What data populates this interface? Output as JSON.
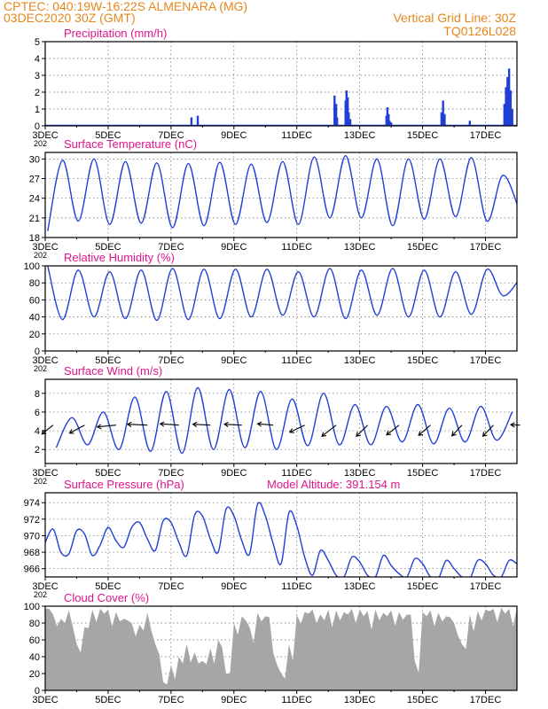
{
  "header": {
    "line1": "CPTEC:   040:19W-16:22S   ALMENARA (MG)",
    "line2": "03DEC2020 30Z (GMT)",
    "grid_note": "Vertical Grid Line: 30Z",
    "code": "TQ0126L028"
  },
  "colors": {
    "header": "#e8861a",
    "panel_title": "#e0158c",
    "series": "#1f3fd6",
    "cloud": "#a6a6a6",
    "axis": "#000000",
    "grid": "#666666"
  },
  "x_axis": {
    "start": "03DEC",
    "end": "18DEC",
    "tick_labels": [
      "3DEC",
      "5DEC",
      "7DEC",
      "9DEC",
      "11DEC",
      "13DEC",
      "15DEC",
      "17DEC"
    ],
    "tick_days": [
      0,
      2,
      4,
      6,
      8,
      10,
      12,
      14
    ],
    "year_fragment": "202"
  },
  "chart_data": [
    {
      "type": "bar",
      "title": "Precipitation (mm/h)",
      "ylim": [
        0,
        5
      ],
      "yticks": [
        "0",
        "1",
        "2",
        "3",
        "4",
        "5"
      ],
      "grid": true,
      "x_day": [
        4.65,
        4.85,
        9.2,
        9.25,
        9.28,
        9.55,
        9.58,
        9.62,
        9.65,
        9.7,
        10.85,
        10.88,
        10.92,
        10.95,
        11.0,
        12.6,
        12.65,
        12.7,
        13.5,
        14.6,
        14.65,
        14.7,
        14.75,
        14.8,
        14.85
      ],
      "values": [
        0.5,
        0.6,
        1.8,
        1.3,
        0.5,
        1.5,
        2.1,
        1.7,
        0.8,
        0.4,
        0.6,
        1.1,
        0.7,
        0.3,
        0.2,
        0.8,
        1.5,
        0.7,
        0.3,
        1.3,
        2.3,
        2.9,
        3.4,
        2.1,
        1.0
      ]
    },
    {
      "type": "line",
      "title": "Surface Temperature (nC)",
      "ylim": [
        18,
        31
      ],
      "yticks": [
        "18",
        "21",
        "24",
        "27",
        "30"
      ],
      "grid": true,
      "series": [
        {
          "min_day": [
            0.08,
            1.05,
            2.05,
            3.05,
            4.05,
            5.05,
            6.05,
            7.05,
            8.05,
            9.05,
            10.05,
            11.05,
            12.05,
            13.05,
            14.05,
            15.05
          ],
          "min_values": [
            19.0,
            20.5,
            20.0,
            20.2,
            19.5,
            19.8,
            20.0,
            20.3,
            20.0,
            21.0,
            21.0,
            19.8,
            20.8,
            21.2,
            20.5,
            22.5
          ],
          "max_day": [
            0.55,
            1.55,
            2.55,
            3.55,
            4.55,
            5.55,
            6.55,
            7.55,
            8.55,
            9.55,
            10.55,
            11.55,
            12.55,
            13.55,
            14.55
          ],
          "max_values": [
            29.8,
            30.0,
            29.6,
            29.4,
            29.3,
            29.5,
            29.2,
            29.6,
            30.3,
            30.5,
            30.0,
            30.0,
            30.0,
            30.2,
            27.5
          ]
        }
      ]
    },
    {
      "type": "line",
      "title": "Relative Humidity (%)",
      "ylim": [
        0,
        100
      ],
      "yticks": [
        "0",
        "20",
        "40",
        "60",
        "80",
        "100"
      ],
      "grid": true,
      "series": [
        {
          "min_day": [
            0.55,
            1.55,
            2.55,
            3.55,
            4.55,
            5.55,
            6.55,
            7.55,
            8.55,
            9.55,
            10.55,
            11.55,
            12.55,
            13.55,
            14.55
          ],
          "min_values": [
            37,
            40,
            38,
            36,
            37,
            38,
            40,
            42,
            40,
            38,
            42,
            40,
            40,
            43,
            65
          ],
          "max_day": [
            0.08,
            1.05,
            2.05,
            3.05,
            4.05,
            5.05,
            6.05,
            7.05,
            8.05,
            9.05,
            10.05,
            11.05,
            12.05,
            13.05,
            14.05,
            15.05
          ],
          "max_values": [
            100,
            95,
            93,
            95,
            97,
            96,
            96,
            96,
            93,
            97,
            95,
            97,
            95,
            93,
            96,
            83
          ]
        }
      ]
    },
    {
      "type": "line",
      "title": "Surface Wind (m/s)",
      "ylim": [
        0.5,
        9.5
      ],
      "yticks": [
        "2",
        "4",
        "6",
        "8"
      ],
      "grid": true,
      "series": [
        {
          "min_day": [
            0.35,
            1.35,
            2.35,
            3.35,
            4.35,
            5.35,
            6.35,
            7.35,
            8.35,
            9.35,
            10.35,
            11.35,
            12.35,
            13.35,
            14.35
          ],
          "min_values": [
            2.2,
            2.5,
            2.0,
            1.8,
            1.6,
            2.0,
            2.2,
            2.0,
            2.4,
            2.5,
            2.5,
            2.8,
            2.6,
            2.8,
            3.0
          ],
          "max_day": [
            0.85,
            1.85,
            2.85,
            3.85,
            4.85,
            5.85,
            6.85,
            7.85,
            8.85,
            9.85,
            10.85,
            11.85,
            12.85,
            13.85,
            14.85
          ],
          "max_values": [
            5.4,
            6.0,
            7.6,
            8.2,
            8.6,
            8.4,
            8.2,
            7.4,
            8.0,
            6.8,
            6.6,
            6.8,
            6.4,
            6.6,
            6.0
          ]
        }
      ],
      "vectors": {
        "x_day": [
          0.25,
          1.25,
          2.25,
          3.25,
          4.25,
          5.25,
          6.25,
          7.25,
          8.25,
          9.25,
          10.25,
          11.25,
          12.25,
          13.25,
          14.25,
          15.1
        ],
        "u": [
          -1.8,
          -2.4,
          -3.0,
          -3.2,
          -3.0,
          -2.8,
          -2.8,
          -2.5,
          -2.4,
          -2.3,
          -1.8,
          -2.0,
          -1.9,
          -1.6,
          -1.7,
          -1.5
        ],
        "v": [
          -2.0,
          -1.8,
          -0.4,
          0.2,
          0.3,
          0.2,
          0.2,
          0.3,
          -1.6,
          -2.5,
          -2.5,
          -2.2,
          -2.3,
          -2.4,
          -2.5,
          0.1
        ]
      }
    },
    {
      "type": "line",
      "title": "Surface Pressure (hPa)",
      "annotation": "Model Altitude: 391.154 m",
      "ylim": [
        965,
        975.2
      ],
      "yticks": [
        "966",
        "968",
        "970",
        "972",
        "974"
      ],
      "grid": true,
      "series": [
        {
          "x_day": [
            0.0,
            0.25,
            0.5,
            0.75,
            1.0,
            1.25,
            1.5,
            1.75,
            2.0,
            2.25,
            2.5,
            2.75,
            3.0,
            3.25,
            3.5,
            3.75,
            4.0,
            4.25,
            4.5,
            4.75,
            5.0,
            5.25,
            5.5,
            5.75,
            6.0,
            6.25,
            6.5,
            6.75,
            7.0,
            7.25,
            7.5,
            7.75,
            8.0,
            8.25,
            8.5,
            8.75,
            9.0,
            9.25,
            9.5,
            9.75,
            10.0,
            10.25,
            10.5,
            10.75,
            11.0,
            11.25,
            11.5,
            11.75,
            12.0,
            12.25,
            12.5,
            12.75,
            13.0,
            13.25,
            13.5,
            13.75,
            14.0,
            14.25,
            14.5,
            14.75,
            15.0
          ],
          "values": [
            969.2,
            970.8,
            968.0,
            967.8,
            970.6,
            970.2,
            967.6,
            968.9,
            971.0,
            969.4,
            968.6,
            971.0,
            971.6,
            969.6,
            968.2,
            971.8,
            971.6,
            969.2,
            967.6,
            972.5,
            972.4,
            969.6,
            968.0,
            973.2,
            972.4,
            969.4,
            967.8,
            973.8,
            972.4,
            969.0,
            966.6,
            972.8,
            971.2,
            967.4,
            965.2,
            968.2,
            967.0,
            965.2,
            965.0,
            967.4,
            966.8,
            965.2,
            965.0,
            967.6,
            966.4,
            965.4,
            965.0,
            967.2,
            966.6,
            965.0,
            964.8,
            967.0,
            966.0,
            965.0,
            964.8,
            967.0,
            966.6,
            965.2,
            965.0,
            967.0,
            966.6
          ]
        }
      ]
    },
    {
      "type": "area",
      "title": "Cloud Cover (%)",
      "ylim": [
        0,
        100
      ],
      "yticks": [
        "0",
        "20",
        "40",
        "60",
        "80",
        "100"
      ],
      "grid": true,
      "series": [
        {
          "x_day": [
            0.0,
            0.25,
            0.5,
            0.75,
            1.0,
            1.25,
            1.5,
            1.75,
            2.0,
            2.25,
            2.5,
            2.75,
            3.0,
            3.25,
            3.5,
            3.75,
            4.0,
            4.25,
            4.5,
            4.75,
            5.0,
            5.25,
            5.5,
            5.75,
            6.0,
            6.25,
            6.5,
            6.75,
            7.0,
            7.25,
            7.5,
            7.75,
            8.0,
            8.25,
            8.5,
            8.75,
            9.0,
            9.25,
            9.5,
            9.75,
            10.0,
            10.25,
            10.5,
            10.75,
            11.0,
            11.25,
            11.5,
            11.75,
            12.0,
            12.25,
            12.5,
            12.75,
            13.0,
            13.25,
            13.5,
            13.75,
            14.0,
            14.25,
            14.5,
            14.75,
            15.0
          ],
          "values": [
            97,
            90,
            85,
            95,
            55,
            75,
            96,
            97,
            96,
            93,
            85,
            80,
            78,
            92,
            55,
            10,
            30,
            40,
            55,
            45,
            35,
            50,
            60,
            20,
            80,
            88,
            75,
            92,
            88,
            45,
            20,
            55,
            90,
            93,
            96,
            90,
            96,
            95,
            93,
            97,
            96,
            94,
            96,
            92,
            95,
            93,
            90,
            35,
            93,
            95,
            92,
            88,
            80,
            55,
            90,
            94,
            96,
            97,
            98,
            97,
            98
          ]
        }
      ]
    }
  ]
}
